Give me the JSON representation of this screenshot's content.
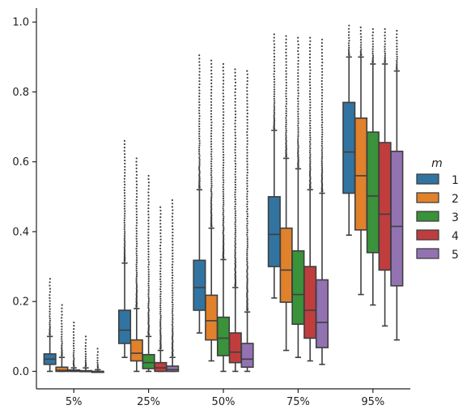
{
  "chart_data": {
    "type": "boxplot",
    "title": "",
    "xlabel": "",
    "ylabel": "",
    "categories": [
      "5%",
      "25%",
      "50%",
      "75%",
      "95%"
    ],
    "ylim": [
      -0.05,
      1.04
    ],
    "yticks": [
      "0.0",
      "0.2",
      "0.4",
      "0.6",
      "0.8",
      "1.0"
    ],
    "yticks_values": [
      0.0,
      0.2,
      0.4,
      0.6,
      0.8,
      1.0
    ],
    "legend": {
      "title": "m",
      "placement": "right-center"
    },
    "series": [
      {
        "name": "1",
        "color": "#3274a1",
        "boxes": [
          {
            "whislo": 0.0,
            "q1": 0.02,
            "med": 0.035,
            "q3": 0.05,
            "whishi": 0.1,
            "fliers_max": 0.265
          },
          {
            "whislo": 0.04,
            "q1": 0.08,
            "med": 0.118,
            "q3": 0.175,
            "whishi": 0.31,
            "fliers_max": 0.66
          },
          {
            "whislo": 0.11,
            "q1": 0.175,
            "med": 0.24,
            "q3": 0.318,
            "whishi": 0.52,
            "fliers_max": 0.905
          },
          {
            "whislo": 0.21,
            "q1": 0.3,
            "med": 0.392,
            "q3": 0.5,
            "whishi": 0.69,
            "fliers_max": 0.965
          },
          {
            "whislo": 0.39,
            "q1": 0.51,
            "med": 0.628,
            "q3": 0.77,
            "whishi": 0.9,
            "fliers_max": 0.99
          }
        ]
      },
      {
        "name": "2",
        "color": "#e1812c",
        "boxes": [
          {
            "whislo": 0.0,
            "q1": 0.0,
            "med": 0.003,
            "q3": 0.012,
            "whishi": 0.04,
            "fliers_max": 0.19
          },
          {
            "whislo": 0.0,
            "q1": 0.03,
            "med": 0.052,
            "q3": 0.09,
            "whishi": 0.18,
            "fliers_max": 0.61
          },
          {
            "whislo": 0.03,
            "q1": 0.09,
            "med": 0.145,
            "q3": 0.218,
            "whishi": 0.41,
            "fliers_max": 0.89
          },
          {
            "whislo": 0.06,
            "q1": 0.198,
            "med": 0.29,
            "q3": 0.41,
            "whishi": 0.61,
            "fliers_max": 0.96
          },
          {
            "whislo": 0.22,
            "q1": 0.405,
            "med": 0.56,
            "q3": 0.725,
            "whishi": 0.9,
            "fliers_max": 0.985
          }
        ]
      },
      {
        "name": "3",
        "color": "#3a923a",
        "boxes": [
          {
            "whislo": 0.0,
            "q1": 0.0,
            "med": 0.001,
            "q3": 0.004,
            "whishi": 0.01,
            "fliers_max": 0.14
          },
          {
            "whislo": 0.0,
            "q1": 0.008,
            "med": 0.025,
            "q3": 0.048,
            "whishi": 0.1,
            "fliers_max": 0.56
          },
          {
            "whislo": 0.0,
            "q1": 0.045,
            "med": 0.095,
            "q3": 0.155,
            "whishi": 0.32,
            "fliers_max": 0.88
          },
          {
            "whislo": 0.04,
            "q1": 0.135,
            "med": 0.22,
            "q3": 0.345,
            "whishi": 0.58,
            "fliers_max": 0.955
          },
          {
            "whislo": 0.19,
            "q1": 0.34,
            "med": 0.502,
            "q3": 0.685,
            "whishi": 0.88,
            "fliers_max": 0.98
          }
        ]
      },
      {
        "name": "4",
        "color": "#c03d3e",
        "boxes": [
          {
            "whislo": 0.0,
            "q1": 0.0,
            "med": 0.0,
            "q3": 0.002,
            "whishi": 0.01,
            "fliers_max": 0.1
          },
          {
            "whislo": 0.0,
            "q1": 0.0,
            "med": 0.01,
            "q3": 0.025,
            "whishi": 0.06,
            "fliers_max": 0.47
          },
          {
            "whislo": 0.0,
            "q1": 0.025,
            "med": 0.055,
            "q3": 0.11,
            "whishi": 0.24,
            "fliers_max": 0.865
          },
          {
            "whislo": 0.03,
            "q1": 0.095,
            "med": 0.175,
            "q3": 0.3,
            "whishi": 0.52,
            "fliers_max": 0.955
          },
          {
            "whislo": 0.13,
            "q1": 0.29,
            "med": 0.45,
            "q3": 0.655,
            "whishi": 0.88,
            "fliers_max": 0.98
          }
        ]
      },
      {
        "name": "5",
        "color": "#9372b2",
        "boxes": [
          {
            "whislo": 0.0,
            "q1": 0.0,
            "med": 0.0,
            "q3": 0.0,
            "whishi": 0.005,
            "fliers_max": 0.065
          },
          {
            "whislo": 0.0,
            "q1": 0.0,
            "med": 0.005,
            "q3": 0.015,
            "whishi": 0.04,
            "fliers_max": 0.49
          },
          {
            "whislo": 0.0,
            "q1": 0.012,
            "med": 0.035,
            "q3": 0.08,
            "whishi": 0.17,
            "fliers_max": 0.86
          },
          {
            "whislo": 0.02,
            "q1": 0.068,
            "med": 0.14,
            "q3": 0.262,
            "whishi": 0.51,
            "fliers_max": 0.95
          },
          {
            "whislo": 0.09,
            "q1": 0.245,
            "med": 0.415,
            "q3": 0.63,
            "whishi": 0.86,
            "fliers_max": 0.975
          }
        ]
      }
    ]
  }
}
